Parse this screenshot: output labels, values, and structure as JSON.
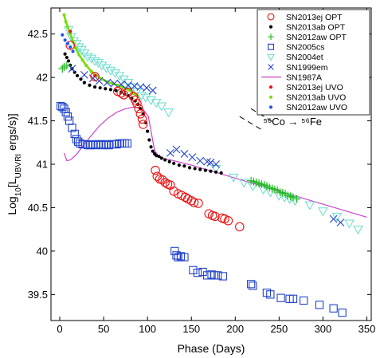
{
  "chart_data": {
    "type": "scatter",
    "title": "",
    "xlabel": "Phase (Days)",
    "ylabel_parts": [
      "Log",
      "10",
      "[L",
      "UBVRI",
      " ergs/s)]"
    ],
    "xlim": [
      -10,
      355
    ],
    "ylim": [
      39.2,
      42.8
    ],
    "xticks": [
      0,
      50,
      100,
      150,
      200,
      250,
      300,
      350
    ],
    "yticks": [
      39.5,
      40,
      40.5,
      41,
      41.5,
      42,
      42.5
    ],
    "ytick_labels": [
      "39.5",
      "40",
      "40.5",
      "41",
      "41.5",
      "42",
      "42.5"
    ],
    "grid": false,
    "legend_position": "top-right",
    "annotation": {
      "text": "⁵⁶Co → ⁵⁶Fe",
      "anchor": [
        232,
        41.45
      ],
      "dash_lines": [
        [
          [
            205,
            41.55
          ],
          [
            233,
            41.38
          ]
        ],
        [
          [
            218,
            41.64
          ],
          [
            246,
            41.47
          ]
        ]
      ]
    },
    "series": [
      {
        "name": "SN2013ej OPT",
        "marker": "circle-open",
        "color": "#ee1111",
        "x": [
          12,
          40,
          66,
          70,
          73,
          78,
          84,
          86,
          88,
          90,
          92,
          94,
          95,
          109,
          111,
          114,
          117,
          120,
          123,
          126,
          130,
          135,
          139,
          143,
          146,
          150,
          153,
          158,
          170,
          174,
          177,
          185,
          188,
          192,
          205
        ],
        "y": [
          42.37,
          42.01,
          41.84,
          41.82,
          41.8,
          41.83,
          41.78,
          41.74,
          41.7,
          41.64,
          41.58,
          41.52,
          41.46,
          40.93,
          40.86,
          40.83,
          40.82,
          40.79,
          40.77,
          40.76,
          40.69,
          40.66,
          40.64,
          40.62,
          40.6,
          40.58,
          40.56,
          40.55,
          40.43,
          40.41,
          40.4,
          40.38,
          40.37,
          40.35,
          40.28
        ]
      },
      {
        "name": "SN2013ab OPT",
        "marker": "dot",
        "color": "#000000",
        "x": [
          6,
          8,
          10,
          12,
          14,
          17,
          20,
          24,
          28,
          34,
          40,
          46,
          52,
          58,
          64,
          70,
          74,
          78,
          82,
          86,
          89,
          92,
          95,
          98,
          100,
          102,
          104,
          106,
          108,
          110,
          113,
          116,
          120,
          125,
          130,
          136,
          142,
          148,
          154,
          160,
          166,
          172,
          178,
          184
        ],
        "y": [
          42.27,
          42.23,
          42.19,
          42.14,
          42.1,
          42.06,
          42.02,
          41.98,
          41.94,
          41.91,
          41.89,
          41.88,
          41.87,
          41.86,
          41.85,
          41.83,
          41.81,
          41.79,
          41.76,
          41.73,
          41.69,
          41.64,
          41.58,
          41.48,
          41.38,
          41.28,
          41.2,
          41.15,
          41.12,
          41.1,
          41.09,
          41.07,
          41.05,
          41.03,
          41.01,
          40.99,
          40.98,
          40.96,
          40.95,
          40.94,
          40.93,
          40.92,
          40.91,
          40.9
        ]
      },
      {
        "name": "SN2012aw OPT",
        "marker": "plus",
        "color": "#22bb22",
        "x": [
          3,
          5,
          8,
          218,
          221,
          224,
          227,
          230,
          233,
          236,
          239,
          242,
          245,
          248,
          251,
          254,
          257,
          260,
          263,
          266,
          270
        ],
        "y": [
          42.1,
          42.12,
          42.14,
          40.81,
          40.8,
          40.79,
          40.78,
          40.77,
          40.76,
          40.75,
          40.73,
          40.72,
          40.71,
          40.7,
          40.68,
          40.67,
          40.66,
          40.64,
          40.63,
          40.62,
          40.6
        ]
      },
      {
        "name": "SN2005cs",
        "marker": "square-open",
        "color": "#2244cc",
        "x": [
          1,
          3,
          5,
          7,
          9,
          11,
          14,
          17,
          19,
          21,
          23,
          26,
          29,
          32,
          35,
          38,
          41,
          44,
          47,
          50,
          53,
          56,
          59,
          62,
          65,
          68,
          71,
          74,
          77,
          131,
          133,
          135,
          138,
          142,
          152,
          157,
          163,
          168,
          173,
          176,
          180,
          186,
          218,
          220,
          236,
          240,
          252,
          262,
          266,
          278,
          296,
          312,
          322
        ],
        "y": [
          41.67,
          41.66,
          41.64,
          41.6,
          41.55,
          41.5,
          41.42,
          41.35,
          41.29,
          41.26,
          41.24,
          41.23,
          41.23,
          41.22,
          41.22,
          41.23,
          41.22,
          41.23,
          41.23,
          41.22,
          41.23,
          41.22,
          41.23,
          41.23,
          41.23,
          41.24,
          41.24,
          41.24,
          41.24,
          40.0,
          39.95,
          39.93,
          39.94,
          39.93,
          39.78,
          39.75,
          39.76,
          39.72,
          39.73,
          39.72,
          39.72,
          39.71,
          39.62,
          39.6,
          39.52,
          39.5,
          39.46,
          39.45,
          39.45,
          39.43,
          39.38,
          39.34,
          39.29
        ]
      },
      {
        "name": "SN2004et",
        "marker": "triangle-down-open",
        "color": "#66ddcc",
        "x": [
          10,
          13,
          16,
          19,
          22,
          25,
          28,
          32,
          36,
          40,
          44,
          48,
          53,
          58,
          63,
          68,
          73,
          78,
          83,
          88,
          93,
          98,
          104,
          110,
          116,
          124,
          178,
          198,
          210,
          220,
          232,
          240,
          250,
          256,
          262,
          268,
          285,
          300,
          316,
          330,
          340
        ],
        "y": [
          42.55,
          42.47,
          42.42,
          42.39,
          42.35,
          42.32,
          42.28,
          42.24,
          42.22,
          42.19,
          42.17,
          42.14,
          42.11,
          42.08,
          42.05,
          42.02,
          41.98,
          41.94,
          41.89,
          41.84,
          41.79,
          41.77,
          41.74,
          41.71,
          41.67,
          41.6,
          40.95,
          40.85,
          40.79,
          40.75,
          40.71,
          40.68,
          40.64,
          40.62,
          40.6,
          40.58,
          40.53,
          40.46,
          40.4,
          40.32,
          40.25
        ]
      },
      {
        "name": "SN1999em",
        "marker": "x",
        "color": "#2244cc",
        "x": [
          14,
          28,
          38,
          45,
          54,
          62,
          70,
          78,
          85,
          92,
          99,
          106,
          126,
          133,
          142,
          151,
          160,
          168,
          172,
          178,
          312,
          320
        ],
        "y": [
          42.1,
          42.03,
          41.99,
          41.96,
          41.94,
          41.93,
          41.92,
          41.91,
          41.9,
          41.89,
          41.88,
          41.85,
          41.13,
          41.17,
          41.12,
          41.08,
          41.04,
          41.03,
          41.02,
          41.0,
          40.37,
          40.33
        ]
      },
      {
        "name": "SN1987A",
        "marker": "line",
        "color": "#cc44cc",
        "x": [
          5,
          8,
          12,
          18,
          25,
          35,
          45,
          55,
          65,
          75,
          85,
          95,
          101,
          104,
          108,
          112,
          118,
          130,
          150,
          200,
          250,
          300,
          350
        ],
        "y": [
          41.13,
          41.04,
          41.05,
          41.1,
          41.19,
          41.32,
          41.44,
          41.53,
          41.6,
          41.64,
          41.66,
          41.63,
          41.55,
          41.38,
          41.16,
          41.1,
          41.07,
          41.04,
          40.99,
          40.84,
          40.69,
          40.54,
          40.39
        ]
      },
      {
        "name": "SN2013ej UVO",
        "marker": "dot",
        "color": "#ee1111",
        "x": [
          12,
          40
        ],
        "y": [
          42.53,
          42.02
        ]
      },
      {
        "name": "SN2013ab UVO",
        "marker": "dot-line",
        "color": "#77dd11",
        "x": [
          5,
          7,
          9,
          12,
          15,
          18,
          22,
          26,
          30,
          36,
          42,
          48,
          54,
          60,
          66,
          72,
          76,
          80,
          84,
          88
        ],
        "y": [
          42.72,
          42.64,
          42.58,
          42.5,
          42.42,
          42.34,
          42.26,
          42.2,
          42.14,
          42.07,
          42.02,
          41.98,
          41.95,
          41.93,
          41.91,
          41.89,
          41.87,
          41.85,
          41.82,
          41.79
        ]
      },
      {
        "name": "SN2012aw UVO",
        "marker": "dot",
        "color": "#2255ee",
        "x": [
          3,
          6,
          9,
          12,
          15
        ],
        "y": [
          42.49,
          42.43,
          42.39,
          42.35,
          42.3
        ]
      }
    ]
  }
}
